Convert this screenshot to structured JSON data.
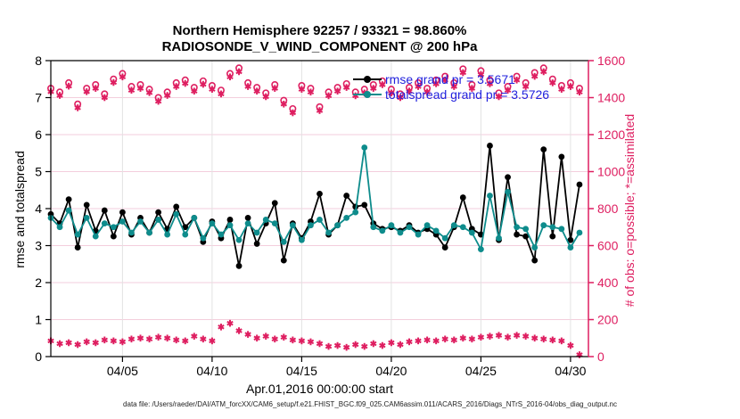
{
  "chart_data": {
    "type": "line",
    "title_line1": "Northern Hemisphere 92257 / 93321 = 98.860%",
    "title_line2": "RADIOSONDE_V_WIND_COMPONENT @ 200 hPa",
    "xlabel": "Apr.01,2016 00:00:00 start",
    "ylabel_left": "rmse and totalspread",
    "ylabel_right": "# of obs: o=possible; *=assimilated",
    "footer": "data file: /Users/raeder/DAI/ATM_forcXX/CAM6_setup/f.e21.FHIST_BGC.f09_025.CAM6assim.011/ACARS_2016/Diags_NTrS_2016-04/obs_diag_output.nc",
    "xlim_days": [
      0,
      30
    ],
    "ylim_left": [
      0,
      8
    ],
    "ylim_right": [
      0,
      1600
    ],
    "x_ticks": [
      "04/05",
      "04/10",
      "04/15",
      "04/20",
      "04/25",
      "04/30"
    ],
    "x_tick_days": [
      4,
      9,
      14,
      19,
      24,
      29
    ],
    "y_ticks_left": [
      0,
      1,
      2,
      3,
      4,
      5,
      6,
      7,
      8
    ],
    "y_ticks_right": [
      0,
      200,
      400,
      600,
      800,
      1000,
      1200,
      1400,
      1600
    ],
    "grid": true,
    "legend_position": "top-right-inside",
    "colors": {
      "rmse": "#000000",
      "totalspread": "#0E8C8C",
      "obs_pink": "#DE1E60",
      "legend_text": "#2222DD",
      "grid_horizontal": "#F3CEDC",
      "grid_vertical": "#E2E2E2"
    },
    "x_days": [
      0,
      0.5,
      1,
      1.5,
      2,
      2.5,
      3,
      3.5,
      4,
      4.5,
      5,
      5.5,
      6,
      6.5,
      7,
      7.5,
      8,
      8.5,
      9,
      9.5,
      10,
      10.5,
      11,
      11.5,
      12,
      12.5,
      13,
      13.5,
      14,
      14.5,
      15,
      15.5,
      16,
      16.5,
      17,
      17.5,
      18,
      18.5,
      19,
      19.5,
      20,
      20.5,
      21,
      21.5,
      22,
      22.5,
      23,
      23.5,
      24,
      24.5,
      25,
      25.5,
      26,
      26.5,
      27,
      27.5,
      28,
      28.5,
      29,
      29.5
    ],
    "series": [
      {
        "name": "rmse",
        "legend": "rmse grand pr = 3.5671",
        "color": "#000000",
        "axis": "left",
        "marker": "circle-filled",
        "line": true,
        "values": [
          3.85,
          3.6,
          4.25,
          2.95,
          4.1,
          3.4,
          3.95,
          3.25,
          3.9,
          3.3,
          3.75,
          3.35,
          3.9,
          3.45,
          4.05,
          3.5,
          3.75,
          3.1,
          3.65,
          3.2,
          3.7,
          2.45,
          3.75,
          3.05,
          3.6,
          4.15,
          2.6,
          3.6,
          3.2,
          3.65,
          4.4,
          3.3,
          3.55,
          4.35,
          4.05,
          4.1,
          3.6,
          3.45,
          3.5,
          3.4,
          3.55,
          3.35,
          3.45,
          3.3,
          2.95,
          3.5,
          4.3,
          3.45,
          3.3,
          5.7,
          3.15,
          4.85,
          3.3,
          3.25,
          2.6,
          5.6,
          3.25,
          5.4,
          3.15,
          4.65
        ]
      },
      {
        "name": "totalspread",
        "legend": "totalspread grand pr = 3.5726",
        "color": "#0E8C8C",
        "axis": "left",
        "marker": "circle-filled",
        "line": true,
        "values": [
          3.75,
          3.5,
          3.95,
          3.3,
          3.75,
          3.25,
          3.6,
          3.5,
          3.65,
          3.35,
          3.65,
          3.35,
          3.7,
          3.3,
          3.85,
          3.3,
          3.75,
          3.2,
          3.6,
          3.3,
          3.55,
          3.15,
          3.6,
          3.35,
          3.7,
          3.6,
          3.1,
          3.55,
          3.15,
          3.55,
          3.7,
          3.35,
          3.55,
          3.75,
          3.9,
          5.65,
          3.5,
          3.4,
          3.55,
          3.35,
          3.5,
          3.3,
          3.55,
          3.4,
          3.2,
          3.55,
          3.5,
          3.35,
          2.9,
          4.35,
          3.2,
          4.45,
          3.5,
          3.45,
          2.95,
          3.55,
          3.5,
          3.45,
          2.95,
          3.35
        ]
      },
      {
        "name": "obs-possible",
        "legend": "",
        "color": "#DE1E60",
        "axis": "right",
        "marker": "circle-open",
        "line": false,
        "values": [
          1450,
          1430,
          1480,
          1365,
          1450,
          1470,
          1420,
          1500,
          1530,
          1460,
          1470,
          1445,
          1400,
          1430,
          1480,
          1495,
          1455,
          1490,
          1465,
          1440,
          1530,
          1560,
          1480,
          1455,
          1425,
          1470,
          1385,
          1340,
          1465,
          1450,
          1350,
          1430,
          1455,
          1475,
          1430,
          1445,
          1470,
          1490,
          1445,
          1420,
          1455,
          1480,
          1450,
          1495,
          1515,
          1480,
          1555,
          1470,
          1545,
          1495,
          1425,
          1460,
          1515,
          1480,
          1535,
          1560,
          1500,
          1465,
          1480,
          1450
        ]
      },
      {
        "name": "obs-assimilated",
        "legend": "",
        "color": "#DE1E60",
        "axis": "right",
        "marker": "asterisk",
        "line": false,
        "values": [
          1432,
          1412,
          1462,
          1345,
          1432,
          1450,
          1400,
          1482,
          1512,
          1440,
          1450,
          1427,
          1380,
          1412,
          1460,
          1477,
          1435,
          1472,
          1445,
          1420,
          1512,
          1540,
          1460,
          1435,
          1405,
          1450,
          1365,
          1318,
          1445,
          1430,
          1330,
          1410,
          1435,
          1455,
          1410,
          1425,
          1450,
          1470,
          1425,
          1400,
          1435,
          1460,
          1430,
          1475,
          1495,
          1460,
          1535,
          1450,
          1525,
          1475,
          1405,
          1440,
          1495,
          1460,
          1515,
          1540,
          1480,
          1445,
          1460,
          1430
        ]
      },
      {
        "name": "obs-low-band",
        "legend": "",
        "color": "#DE1E60",
        "axis": "right",
        "marker": "asterisk",
        "line": false,
        "values": [
          85,
          70,
          75,
          65,
          80,
          75,
          90,
          85,
          80,
          95,
          100,
          95,
          105,
          100,
          90,
          85,
          110,
          95,
          85,
          160,
          180,
          140,
          120,
          100,
          110,
          95,
          105,
          90,
          85,
          80,
          70,
          55,
          60,
          50,
          65,
          55,
          70,
          60,
          75,
          65,
          80,
          85,
          90,
          85,
          95,
          90,
          100,
          95,
          105,
          110,
          115,
          105,
          115,
          110,
          100,
          95,
          90,
          85,
          60,
          10
        ]
      }
    ]
  }
}
